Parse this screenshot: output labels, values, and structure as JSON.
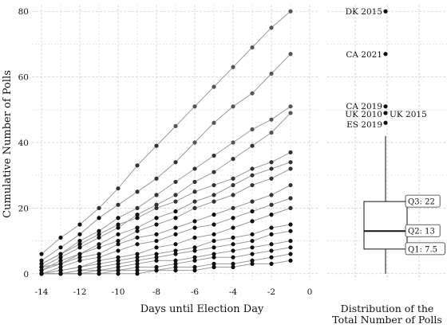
{
  "chart_data": [
    {
      "type": "line",
      "xlabel": "Days until Election Day",
      "ylabel": "Cumulative Number of Polls",
      "xlim": [
        -14.5,
        0.5
      ],
      "ylim": [
        -2,
        82
      ],
      "x_ticks": [
        -14,
        -12,
        -10,
        -8,
        -6,
        -4,
        -2,
        0
      ],
      "y_ticks": [
        0,
        20,
        40,
        60,
        80
      ],
      "grid": true,
      "x": [
        -14,
        -13,
        -12,
        -11,
        -10,
        -9,
        -8,
        -7,
        -6,
        -5,
        -4,
        -3,
        -2,
        -1
      ],
      "series": [
        {
          "values": [
            6,
            11,
            15,
            20,
            26,
            33,
            39,
            45,
            51,
            57,
            63,
            69,
            75,
            80
          ]
        },
        {
          "values": [
            4,
            8,
            12,
            17,
            21,
            25,
            29,
            34,
            40,
            46,
            51,
            55,
            61,
            67
          ]
        },
        {
          "values": [
            3,
            6,
            10,
            13,
            17,
            20,
            24,
            28,
            32,
            36,
            40,
            44,
            47,
            51
          ]
        },
        {
          "values": [
            2,
            5,
            8,
            11,
            14,
            18,
            21,
            24,
            28,
            31,
            35,
            39,
            43,
            49
          ]
        },
        {
          "values": [
            3,
            6,
            9,
            12,
            15,
            17,
            20,
            22,
            25,
            27,
            29,
            32,
            34,
            37
          ]
        },
        {
          "values": [
            1,
            4,
            6,
            9,
            12,
            14,
            17,
            19,
            22,
            24,
            27,
            30,
            32,
            34
          ]
        },
        {
          "values": [
            2,
            3,
            6,
            8,
            10,
            13,
            15,
            17,
            20,
            22,
            24,
            27,
            29,
            32
          ]
        },
        {
          "values": [
            1,
            3,
            5,
            6,
            9,
            11,
            12,
            14,
            16,
            18,
            20,
            22,
            24,
            27
          ]
        },
        {
          "values": [
            0,
            2,
            4,
            5,
            7,
            9,
            10,
            12,
            14,
            15,
            17,
            19,
            21,
            23
          ]
        },
        {
          "values": [
            0,
            1,
            2,
            4,
            5,
            6,
            8,
            9,
            11,
            12,
            14,
            16,
            18,
            20
          ]
        },
        {
          "values": [
            0,
            1,
            2,
            3,
            4,
            5,
            6,
            7,
            8,
            10,
            11,
            12,
            14,
            15
          ]
        },
        {
          "values": [
            0,
            0,
            1,
            2,
            3,
            4,
            5,
            6,
            7,
            8,
            9,
            10,
            12,
            13
          ]
        },
        {
          "values": [
            0,
            0,
            1,
            1,
            2,
            3,
            4,
            4,
            5,
            6,
            7,
            8,
            9,
            10
          ]
        },
        {
          "values": [
            0,
            0,
            0,
            1,
            1,
            2,
            2,
            3,
            4,
            5,
            5,
            6,
            7,
            8
          ]
        },
        {
          "values": [
            0,
            0,
            0,
            0,
            1,
            1,
            1,
            2,
            2,
            3,
            3,
            4,
            5,
            6
          ]
        },
        {
          "values": [
            0,
            0,
            0,
            0,
            0,
            0,
            1,
            1,
            1,
            2,
            2,
            3,
            3,
            4
          ]
        }
      ]
    },
    {
      "type": "box",
      "xlabel": "Distribution of the Total Number of Polls",
      "ylim": [
        -2,
        82
      ],
      "box": {
        "q1": 7.5,
        "median": 13,
        "q3": 22,
        "whisker_low": 0,
        "whisker_high": 42
      },
      "box_labels": [
        "Q3: 22",
        "Q2: 13",
        "Q1: 7.5"
      ],
      "outliers": [
        {
          "label": "DK 2015",
          "value": 80
        },
        {
          "label": "CA 2021",
          "value": 67
        },
        {
          "label": "CA 2019",
          "value": 51
        },
        {
          "label": "UK 2010",
          "value": 49
        },
        {
          "label": "UK 2015",
          "value": 49
        },
        {
          "label": "ES 2019",
          "value": 46
        }
      ]
    }
  ]
}
